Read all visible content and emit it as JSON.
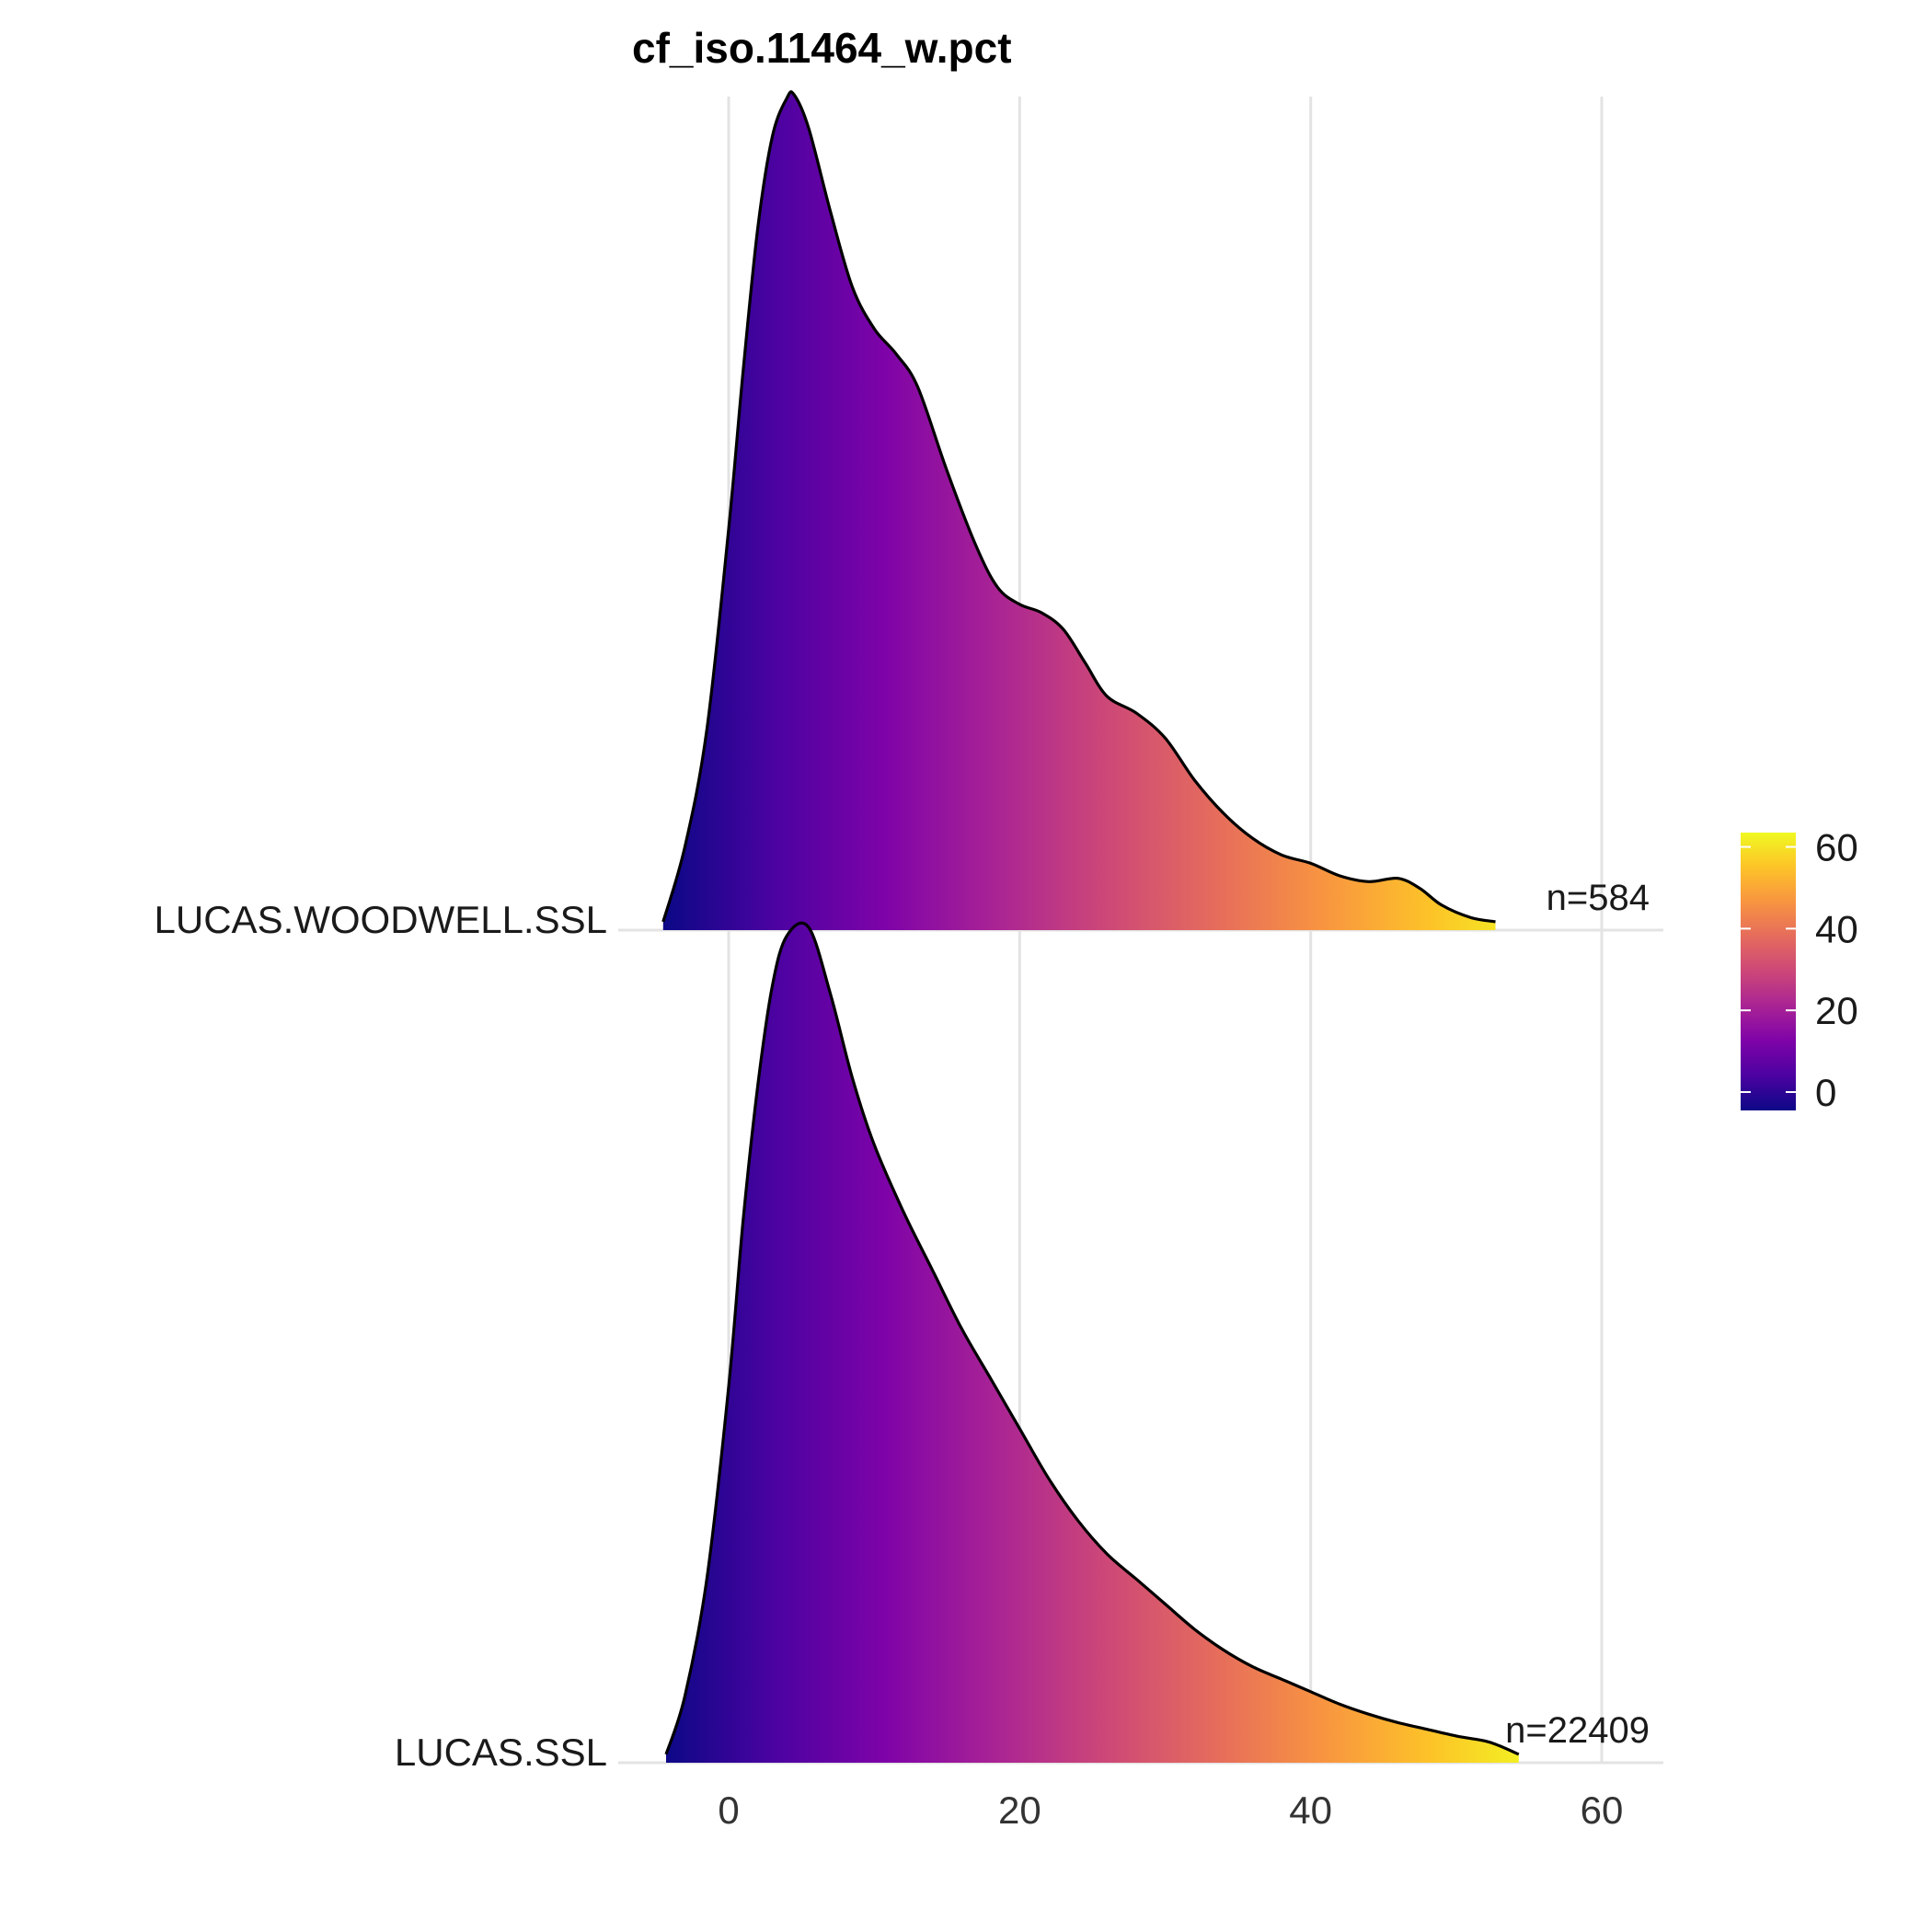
{
  "chart_data": {
    "type": "ridgeline-density",
    "title": "cf_iso.11464_w.pct",
    "xlabel": "",
    "ylabel": "",
    "x_ticks": [
      0,
      20,
      40,
      60
    ],
    "xlim": [
      -7.5,
      64.5
    ],
    "grid": true,
    "colormap": "plasma",
    "legend": {
      "placement": "right",
      "ticks": [
        0,
        20,
        40,
        60
      ],
      "range": [
        -4.5,
        63.5
      ]
    },
    "series": [
      {
        "name": "LUCAS.WOODWELL.SSL",
        "n_label": "n=584",
        "x_range": [
          -4.5,
          52.7
        ],
        "density": [
          [
            -4.5,
            0.01
          ],
          [
            -3.0,
            0.1
          ],
          [
            -1.5,
            0.24
          ],
          [
            0.0,
            0.48
          ],
          [
            1.0,
            0.67
          ],
          [
            2.0,
            0.84
          ],
          [
            3.0,
            0.95
          ],
          [
            4.0,
            0.996
          ],
          [
            4.5,
            1.0
          ],
          [
            5.5,
            0.96
          ],
          [
            7.0,
            0.86
          ],
          [
            8.5,
            0.77
          ],
          [
            10.0,
            0.72
          ],
          [
            11.5,
            0.69
          ],
          [
            13.0,
            0.65
          ],
          [
            15.0,
            0.55
          ],
          [
            17.0,
            0.46
          ],
          [
            18.5,
            0.41
          ],
          [
            20.0,
            0.39
          ],
          [
            21.5,
            0.38
          ],
          [
            23.0,
            0.36
          ],
          [
            24.5,
            0.32
          ],
          [
            26.0,
            0.28
          ],
          [
            28.0,
            0.26
          ],
          [
            30.0,
            0.23
          ],
          [
            32.0,
            0.18
          ],
          [
            34.0,
            0.14
          ],
          [
            36.0,
            0.11
          ],
          [
            38.0,
            0.09
          ],
          [
            40.0,
            0.08
          ],
          [
            42.0,
            0.065
          ],
          [
            44.0,
            0.058
          ],
          [
            46.0,
            0.062
          ],
          [
            47.5,
            0.05
          ],
          [
            49.0,
            0.03
          ],
          [
            51.0,
            0.015
          ],
          [
            52.7,
            0.01
          ]
        ]
      },
      {
        "name": "LUCAS.SSL",
        "n_label": "n=22409",
        "x_range": [
          -4.3,
          54.3
        ],
        "density": [
          [
            -4.3,
            0.01
          ],
          [
            -3.0,
            0.08
          ],
          [
            -1.5,
            0.22
          ],
          [
            0.0,
            0.45
          ],
          [
            1.0,
            0.65
          ],
          [
            2.0,
            0.81
          ],
          [
            3.0,
            0.93
          ],
          [
            4.0,
            0.99
          ],
          [
            5.5,
            1.0
          ],
          [
            7.0,
            0.92
          ],
          [
            8.5,
            0.82
          ],
          [
            10.0,
            0.74
          ],
          [
            12.0,
            0.66
          ],
          [
            14.0,
            0.59
          ],
          [
            16.0,
            0.52
          ],
          [
            18.0,
            0.46
          ],
          [
            20.0,
            0.4
          ],
          [
            22.0,
            0.34
          ],
          [
            24.0,
            0.29
          ],
          [
            26.0,
            0.25
          ],
          [
            28.0,
            0.22
          ],
          [
            30.0,
            0.19
          ],
          [
            32.0,
            0.16
          ],
          [
            34.0,
            0.135
          ],
          [
            36.0,
            0.115
          ],
          [
            38.0,
            0.1
          ],
          [
            40.0,
            0.085
          ],
          [
            42.0,
            0.07
          ],
          [
            44.0,
            0.058
          ],
          [
            46.0,
            0.048
          ],
          [
            48.0,
            0.04
          ],
          [
            50.0,
            0.032
          ],
          [
            52.0,
            0.026
          ],
          [
            53.0,
            0.02
          ],
          [
            54.3,
            0.01
          ]
        ]
      }
    ]
  }
}
